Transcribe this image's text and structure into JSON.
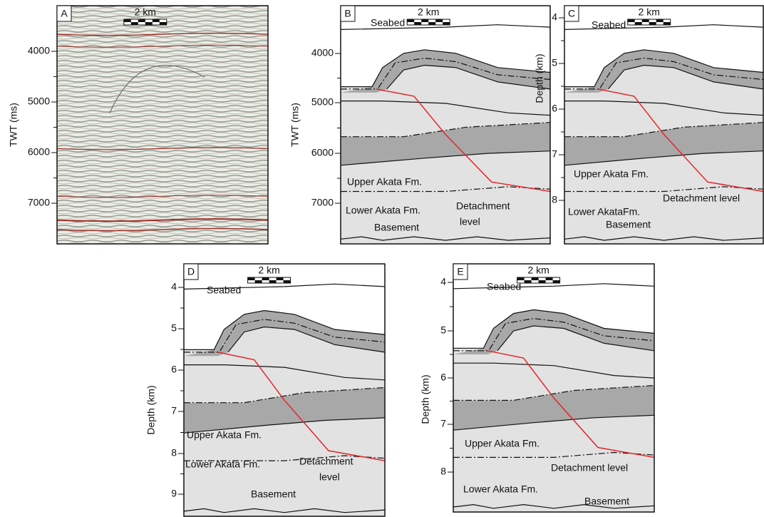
{
  "panels": [
    {
      "label": "A",
      "scale": "2 km",
      "y_axis_label": "TWT (ms)",
      "y_ticks": [
        4000,
        5000,
        6000,
        7000
      ]
    },
    {
      "label": "B",
      "scale": "2 km",
      "y_axis_label": "TWT (ms)",
      "y_ticks": [
        4000,
        5000,
        6000,
        7000
      ],
      "labels": [
        "Seabed",
        "Upper Akata Fm.",
        "Lower Akata Fm.",
        "Detachment",
        "level",
        "Basement"
      ]
    },
    {
      "label": "C",
      "scale": "2 km",
      "y_axis_label": "Depth (km)",
      "y_ticks": [
        4,
        5,
        6,
        7,
        8
      ],
      "labels": [
        "Seabed",
        "Upper Akata Fm.",
        "Lower AkataFm.",
        "Detachment level",
        "Basement"
      ]
    },
    {
      "label": "D",
      "scale": "2 km",
      "y_axis_label": "Depth (km)",
      "y_ticks": [
        4,
        5,
        6,
        7,
        8,
        9
      ],
      "labels": [
        "Seabed",
        "Upper Akata Fm.",
        "Lower Akata Fm.",
        "Detachment",
        "level",
        "Basement"
      ]
    },
    {
      "label": "E",
      "scale": "2 km",
      "y_axis_label": "Depth (km)",
      "y_ticks": [
        4,
        5,
        6,
        7,
        8
      ],
      "labels": [
        "Seabed",
        "Upper Akata Fm.",
        "Detachment level",
        "Lower Akata Fm.",
        "Basement"
      ]
    }
  ]
}
